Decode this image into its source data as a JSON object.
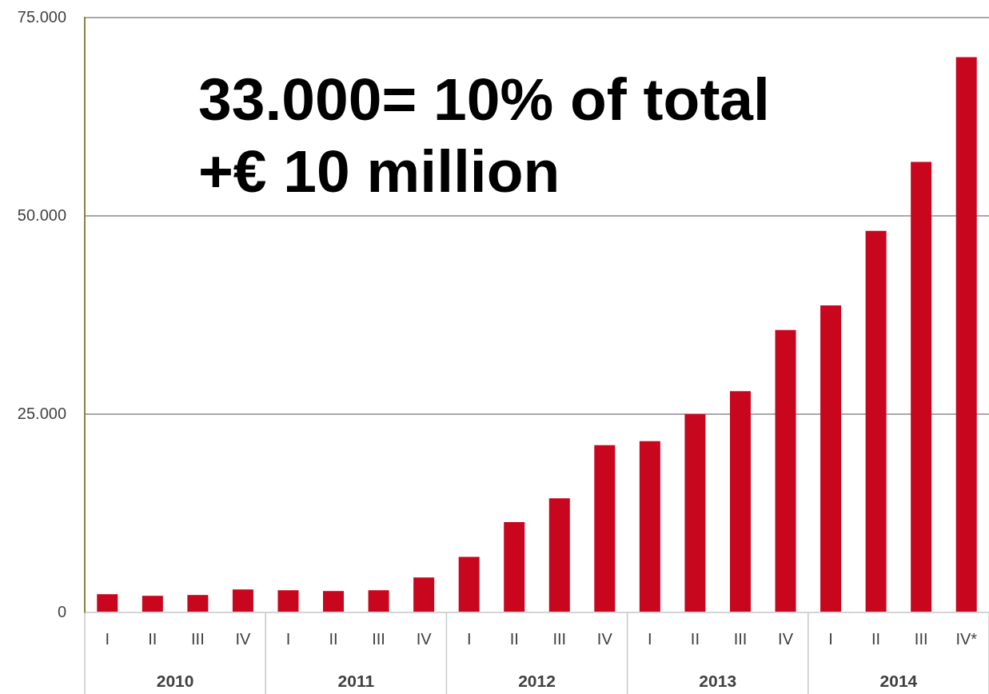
{
  "chart_data": {
    "type": "bar",
    "title": "33.000= 10% of total",
    "subtitle": "+€ 10 million",
    "categories": [
      "I",
      "II",
      "III",
      "IV",
      "I",
      "II",
      "III",
      "IV",
      "I",
      "II",
      "III",
      "IV",
      "I",
      "II",
      "III",
      "IV",
      "I",
      "II",
      "III",
      "IV*"
    ],
    "values": [
      2300,
      2100,
      2200,
      2900,
      2800,
      2700,
      2800,
      4400,
      7000,
      11400,
      14400,
      21100,
      21600,
      25000,
      27900,
      35600,
      38700,
      48100,
      56800,
      70000
    ],
    "color": "#c8071e",
    "annotations": [
      "2010",
      "2011",
      "2012",
      "2013",
      "2014"
    ],
    "ylim": [
      0,
      75000
    ],
    "yticks": [
      0,
      {
        "value": 25000,
        "label": "25.000"
      },
      {
        "value": 50000,
        "label": "50.000"
      },
      {
        "value": 75000,
        "label": "75.000"
      }
    ],
    "grid": "y"
  }
}
